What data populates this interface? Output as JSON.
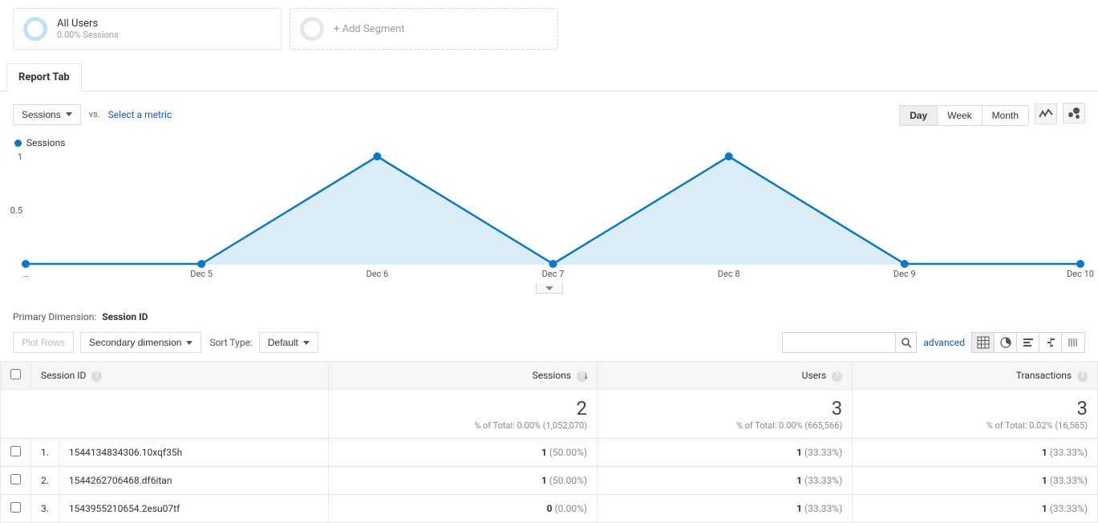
{
  "segments": {
    "primary": {
      "title": "All Users",
      "subtitle": "0.00% Sessions"
    },
    "add": {
      "label": "+ Add Segment"
    }
  },
  "tab": {
    "label": "Report Tab"
  },
  "controls": {
    "metric_selector": "Sessions",
    "vs": "vs.",
    "select_metric": "Select a metric",
    "ranges": [
      "Day",
      "Week",
      "Month"
    ],
    "active_range_index": 0
  },
  "chart": {
    "legend": "Sessions",
    "type": "area",
    "series_color": "#0d78c3",
    "fill_color": "#d7ecf7",
    "marker_radius": 5,
    "line_width": 2.5,
    "grid_color": "#e6e6e6",
    "axis_color": "#cfcfcf",
    "ylim": [
      0,
      1
    ],
    "yticks": [
      0.5,
      1
    ],
    "x_labels": [
      "…",
      "Dec 5",
      "Dec 6",
      "Dec 7",
      "Dec 8",
      "Dec 9",
      "Dec 10"
    ],
    "values": [
      0,
      0,
      1,
      0,
      1,
      0,
      0
    ]
  },
  "dimension": {
    "label": "Primary Dimension:",
    "value": "Session ID"
  },
  "filters": {
    "plot_rows": "Plot Rows",
    "secondary_dim": "Secondary dimension",
    "sort_type_label": "Sort Type:",
    "sort_type_value": "Default",
    "advanced": "advanced",
    "search_placeholder": ""
  },
  "table": {
    "columns": [
      "Session ID",
      "Sessions",
      "Users",
      "Transactions"
    ],
    "sort_col_index": 1,
    "totals": {
      "values": [
        "2",
        "3",
        "3"
      ],
      "subs": [
        "% of Total: 0.00% (1,052,070)",
        "% of Total: 0.00% (665,566)",
        "% of Total: 0.02% (16,565)"
      ]
    },
    "rows": [
      {
        "idx": "1.",
        "id": "1544134834306.10xqf35h",
        "sessions_v": "1",
        "sessions_p": "(50.00%)",
        "users_v": "1",
        "users_p": "(33.33%)",
        "tx_v": "1",
        "tx_p": "(33.33%)"
      },
      {
        "idx": "2.",
        "id": "1544262706468.df6itan",
        "sessions_v": "1",
        "sessions_p": "(50.00%)",
        "users_v": "1",
        "users_p": "(33.33%)",
        "tx_v": "1",
        "tx_p": "(33.33%)"
      },
      {
        "idx": "3.",
        "id": "1543955210654.2esu07tf",
        "sessions_v": "0",
        "sessions_p": "(0.00%)",
        "users_v": "1",
        "users_p": "(33.33%)",
        "tx_v": "1",
        "tx_p": "(33.33%)"
      }
    ]
  }
}
